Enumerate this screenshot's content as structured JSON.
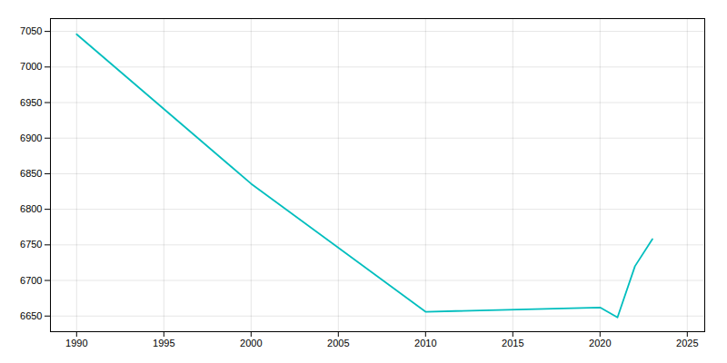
{
  "chart_data": {
    "type": "line",
    "x": [
      1990,
      2000,
      2010,
      2020,
      2021,
      2022,
      2023
    ],
    "values": [
      7046,
      6836,
      6656,
      6662,
      6648,
      6720,
      6758
    ],
    "color": "#00BEBE",
    "xlim": [
      1988.5,
      2026
    ],
    "ylim": [
      6628,
      7068
    ],
    "xticks": [
      1990,
      1995,
      2000,
      2005,
      2010,
      2015,
      2020,
      2025
    ],
    "yticks": [
      6650,
      6700,
      6750,
      6800,
      6850,
      6900,
      6950,
      7000,
      7050
    ],
    "grid": true
  }
}
